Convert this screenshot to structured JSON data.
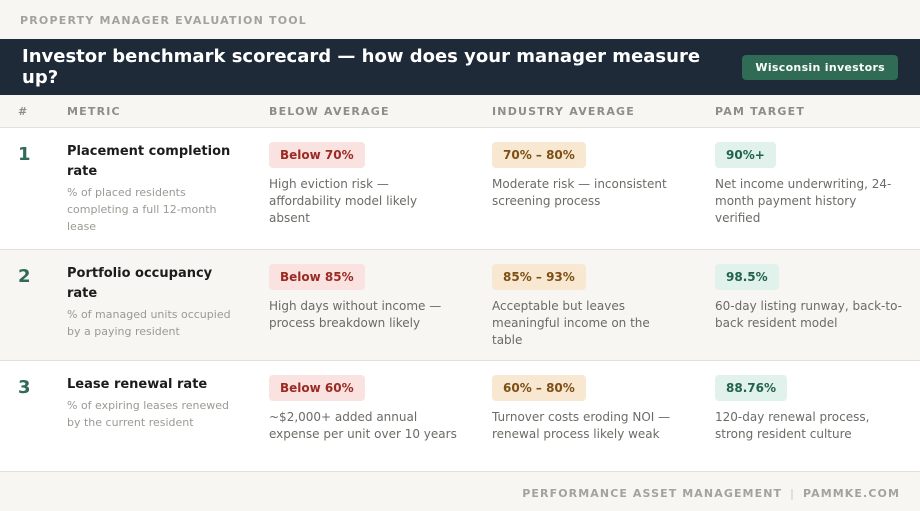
{
  "eyebrow": "PROPERTY MANAGER EVALUATION TOOL",
  "banner": {
    "title": "Investor benchmark scorecard — how does your manager measure up?",
    "badge": "Wisconsin investors"
  },
  "table": {
    "headers": [
      "#",
      "METRIC",
      "BELOW AVERAGE",
      "INDUSTRY AVERAGE",
      "PAM TARGET"
    ],
    "rows": [
      {
        "num": "1",
        "metric": "Placement completion rate",
        "desc": "% of placed residents completing a full 12-month lease",
        "below": {
          "badge": "Below 70%",
          "text": "High eviction risk — affordability model likely absent"
        },
        "avg": {
          "badge": "70% – 80%",
          "text": "Moderate risk — inconsistent screening process"
        },
        "target": {
          "badge": "90%+",
          "text": "Net income underwriting, 24-month payment history verified"
        }
      },
      {
        "num": "2",
        "metric": "Portfolio occupancy rate",
        "desc": "% of managed units occupied by a paying resident",
        "below": {
          "badge": "Below 85%",
          "text": "High days without income — process breakdown likely"
        },
        "avg": {
          "badge": "85% – 93%",
          "text": "Acceptable but leaves meaningful income on the table"
        },
        "target": {
          "badge": "98.5%",
          "text": "60-day listing runway, back-to-back resident model"
        }
      },
      {
        "num": "3",
        "metric": "Lease renewal rate",
        "desc": "% of expiring leases renewed by the current resident",
        "below": {
          "badge": "Below 60%",
          "text": "~$2,000+ added annual expense per unit over 10 years"
        },
        "avg": {
          "badge": "60% – 80%",
          "text": "Turnover costs eroding NOI — renewal process likely weak"
        },
        "target": {
          "badge": "88.76%",
          "text": "120-day renewal process, strong resident culture"
        }
      }
    ]
  },
  "footer": {
    "left": "PERFORMANCE ASSET MANAGEMENT",
    "separator": "|",
    "right": "PAMMKE.COM"
  }
}
